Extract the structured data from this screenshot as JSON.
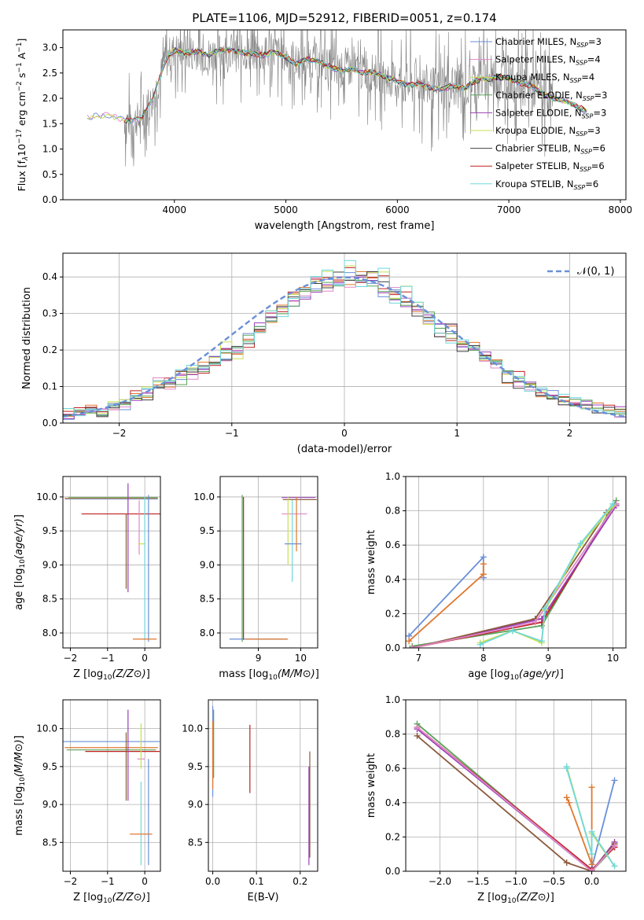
{
  "figure": {
    "title": "PLATE=1106, MJD=52912, FIBERID=0051, z=0.174"
  },
  "colors": {
    "data": "#808080",
    "series": [
      "#6a8fd8",
      "#e07830",
      "#5aa35a",
      "#c02020",
      "#9b3fb8",
      "#8b5a3c",
      "#e088c8",
      "#c8e050",
      "#70d8dc"
    ],
    "gaussian": "#6a8fd8"
  },
  "chart_data": [
    {
      "id": "spectrum",
      "type": "line",
      "xlabel": "wavelength [Angstrom, rest frame]",
      "ylabel": "Flux [f$_\\lambda$10$^{-17}$ erg cm$^{-2}$ s$^{-1}$ A$^{-1}$]",
      "ylabel_parts": [
        "Flux [f",
        "λ",
        "10",
        "−17",
        " erg cm",
        "−2",
        " s",
        "−1",
        " A",
        "−1",
        "]"
      ],
      "xlim": [
        3000,
        8050
      ],
      "ylim": [
        0,
        3.35
      ],
      "xticks": [
        4000,
        5000,
        6000,
        7000,
        8000
      ],
      "yticks": [
        0.0,
        0.5,
        1.0,
        1.5,
        2.0,
        2.5,
        3.0
      ],
      "grid": false,
      "legend_position": "upper-right",
      "legend": [
        {
          "label": "Chabrier MILES, N",
          "sub": "SSP",
          "suffix": "=3"
        },
        {
          "label": "Salpeter MILES, N",
          "sub": "SSP",
          "suffix": "=4"
        },
        {
          "label": "Kroupa MILES, N",
          "sub": "SSP",
          "suffix": "=4"
        },
        {
          "label": "Chabrier ELODIE, N",
          "sub": "SSP",
          "suffix": "=3"
        },
        {
          "label": "Salpeter ELODIE, N",
          "sub": "SSP",
          "suffix": "=3"
        },
        {
          "label": "Kroupa ELODIE, N",
          "sub": "SSP",
          "suffix": "=3"
        },
        {
          "label": "Chabrier STELIB, N",
          "sub": "SSP",
          "suffix": "=6"
        },
        {
          "label": "Salpeter STELIB, N",
          "sub": "SSP",
          "suffix": "=6"
        },
        {
          "label": "Kroupa STELIB, N",
          "sub": "SSP",
          "suffix": "=6"
        }
      ],
      "legend_colors": [
        "#6a8fd8",
        "#e088c8",
        "#c8e050",
        "#5aa35a",
        "#9b3fb8",
        "#c8e050",
        "#404040",
        "#c02020",
        "#70d8dc"
      ],
      "continuum": {
        "x": [
          3220,
          3300,
          3400,
          3500,
          3600,
          3700,
          3800,
          3900,
          3950,
          4000,
          4100,
          4200,
          4300,
          4400,
          4500,
          4600,
          4700,
          4800,
          4900,
          5000,
          5100,
          5200,
          5300,
          5400,
          5500,
          5600,
          5700,
          5800,
          5900,
          6000,
          6100,
          6200,
          6300,
          6400,
          6500,
          6600,
          6700,
          6800,
          6900,
          7000,
          7100,
          7200,
          7300,
          7400,
          7500,
          7600,
          7700
        ],
        "y": [
          1.62,
          1.66,
          1.67,
          1.6,
          1.55,
          1.6,
          1.95,
          2.6,
          2.85,
          2.95,
          2.9,
          2.92,
          2.85,
          2.95,
          2.95,
          2.9,
          2.88,
          2.85,
          2.92,
          2.82,
          2.68,
          2.78,
          2.72,
          2.62,
          2.55,
          2.58,
          2.5,
          2.52,
          2.4,
          2.35,
          2.25,
          2.3,
          2.2,
          2.18,
          2.25,
          2.2,
          2.35,
          2.38,
          2.42,
          2.4,
          2.3,
          2.25,
          2.1,
          2.0,
          1.95,
          1.85,
          1.75
        ]
      },
      "data_region_x": [
        3550,
        7400
      ]
    },
    {
      "id": "residuals",
      "type": "bar",
      "xlabel": "(data-model)/error",
      "ylabel": "Normed distribution",
      "xlim": [
        -2.5,
        2.5
      ],
      "ylim": [
        0,
        0.465
      ],
      "xticks": [
        -2,
        -1,
        0,
        1,
        2
      ],
      "yticks": [
        0.0,
        0.1,
        0.2,
        0.3,
        0.4
      ],
      "grid": true,
      "legend_position": "upper-right",
      "legend": [
        {
          "label": "𝒩(0, 1)"
        }
      ],
      "bin_width": 0.1,
      "bins_start": -2.5,
      "series_values": [
        [
          0.025,
          0.025,
          0.03,
          0.035,
          0.04,
          0.05,
          0.06,
          0.08,
          0.1,
          0.115,
          0.12,
          0.14,
          0.15,
          0.17,
          0.19,
          0.21,
          0.24,
          0.26,
          0.28,
          0.31,
          0.33,
          0.35,
          0.36,
          0.38,
          0.39,
          0.4,
          0.39,
          0.38,
          0.36,
          0.35,
          0.33,
          0.31,
          0.29,
          0.27,
          0.24,
          0.22,
          0.2,
          0.18,
          0.16,
          0.14,
          0.12,
          0.1,
          0.09,
          0.08,
          0.07,
          0.06,
          0.05,
          0.04,
          0.035,
          0.03
        ],
        [
          0.03,
          0.02,
          0.035,
          0.03,
          0.045,
          0.055,
          0.07,
          0.07,
          0.11,
          0.1,
          0.13,
          0.13,
          0.16,
          0.16,
          0.18,
          0.2,
          0.23,
          0.25,
          0.29,
          0.32,
          0.34,
          0.36,
          0.39,
          0.37,
          0.4,
          0.38,
          0.4,
          0.41,
          0.38,
          0.36,
          0.34,
          0.3,
          0.29,
          0.25,
          0.26,
          0.21,
          0.21,
          0.17,
          0.16,
          0.12,
          0.11,
          0.1,
          0.08,
          0.07,
          0.06,
          0.05,
          0.05,
          0.04,
          0.03,
          0.03
        ],
        [
          0.035,
          0.03,
          0.035,
          0.04,
          0.05,
          0.06,
          0.08,
          0.09,
          0.11,
          0.12,
          0.14,
          0.15,
          0.15,
          0.17,
          0.21,
          0.19,
          0.22,
          0.26,
          0.3,
          0.3,
          0.35,
          0.37,
          0.4,
          0.41,
          0.39,
          0.43,
          0.38,
          0.4,
          0.41,
          0.34,
          0.36,
          0.32,
          0.28,
          0.26,
          0.23,
          0.23,
          0.2,
          0.19,
          0.16,
          0.14,
          0.13,
          0.1,
          0.09,
          0.08,
          0.07,
          0.06,
          0.05,
          0.04,
          0.04,
          0.03
        ]
      ],
      "gaussian": {
        "mu": 0,
        "sigma": 1
      }
    },
    {
      "id": "age-vs-Z",
      "type": "scatter",
      "xlabel": "Z [log10(Z/Z⊙)]",
      "ylabel": "age  [log10(age/yr)]",
      "xlim": [
        -2.2,
        0.42
      ],
      "ylim": [
        7.78,
        10.3
      ],
      "xticks": [
        -2,
        -1,
        0
      ],
      "yticks": [
        8.0,
        8.5,
        9.0,
        9.5,
        10.0
      ],
      "grid": true,
      "points": [
        {
          "x": -0.9,
          "y": 9.97,
          "xerr": 1.25,
          "yerr": 0
        },
        {
          "x": -0.9,
          "y": 9.98,
          "xerr": 1.25,
          "yerr": 0
        },
        {
          "x": -0.85,
          "y": 9.99,
          "xerr": 1.2,
          "yerr": 0
        },
        {
          "x": -0.6,
          "y": 9.75,
          "xerr": 1.1,
          "yerr": 0
        },
        {
          "x": -0.45,
          "y": 9.4,
          "xerr": 0,
          "yerr": 0.8
        },
        {
          "x": -0.5,
          "y": 9.2,
          "xerr": 0,
          "yerr": 0.55
        },
        {
          "x": -0.15,
          "y": 9.55,
          "xerr": 0,
          "yerr": 0.4
        },
        {
          "x": -0.08,
          "y": 9.31,
          "xerr": 0.1,
          "yerr": 0
        },
        {
          "x": 0.0,
          "y": 8.95,
          "xerr": 0,
          "yerr": 1.05
        },
        {
          "x": 0.1,
          "y": 8.95,
          "xerr": 0,
          "yerr": 1.08
        },
        {
          "x": 0.0,
          "y": 7.91,
          "xerr": 0.32,
          "yerr": 0
        }
      ]
    },
    {
      "id": "age-vs-mass",
      "type": "scatter",
      "xlabel": "mass [log10(M/M⊙)]",
      "ylabel": "",
      "xlim": [
        8.1,
        10.4
      ],
      "ylim": [
        7.78,
        10.3
      ],
      "xticks": [
        9,
        10
      ],
      "yticks": [
        8.0,
        8.5,
        9.0,
        9.5,
        10.0
      ],
      "grid": true,
      "points": [
        {
          "x": 9.0,
          "y": 7.91,
          "xerr": 0.68,
          "yerr": 0
        },
        {
          "x": 9.2,
          "y": 7.91,
          "xerr": 0.5,
          "yerr": 0
        },
        {
          "x": 8.62,
          "y": 8.95,
          "xerr": 0,
          "yerr": 1.08
        },
        {
          "x": 8.65,
          "y": 8.95,
          "xerr": 0,
          "yerr": 1.05
        },
        {
          "x": 9.95,
          "y": 9.99,
          "xerr": 0.4,
          "yerr": 0
        },
        {
          "x": 9.98,
          "y": 9.96,
          "xerr": 0.4,
          "yerr": 0
        },
        {
          "x": 9.85,
          "y": 9.75,
          "xerr": 0.3,
          "yerr": 0
        },
        {
          "x": 9.7,
          "y": 9.5,
          "xerr": 0,
          "yerr": 0.5
        },
        {
          "x": 9.8,
          "y": 9.35,
          "xerr": 0,
          "yerr": 0.6
        },
        {
          "x": 9.82,
          "y": 9.31,
          "xerr": 0.2,
          "yerr": 0
        },
        {
          "x": 9.9,
          "y": 9.6,
          "xerr": 0,
          "yerr": 0.4
        }
      ]
    },
    {
      "id": "massweight-vs-age",
      "type": "line",
      "xlabel": "age  [log10(age/yr)]",
      "ylabel": "mass weight",
      "xlim": [
        6.8,
        10.2
      ],
      "ylim": [
        0,
        1.0
      ],
      "xticks": [
        7,
        8,
        9,
        10
      ],
      "yticks": [
        0.0,
        0.2,
        0.4,
        0.6,
        0.8,
        1.0
      ],
      "grid": true,
      "series": [
        {
          "x": [
            6.85,
            8.0,
            8.0
          ],
          "y": [
            0.07,
            0.53,
            0.41
          ]
        },
        {
          "x": [
            6.85,
            8.0,
            8.0
          ],
          "y": [
            0.04,
            0.43,
            0.49
          ]
        },
        {
          "x": [
            6.9,
            8.9,
            10.05
          ],
          "y": [
            0.01,
            0.13,
            0.86
          ]
        },
        {
          "x": [
            6.9,
            8.9,
            10.05
          ],
          "y": [
            0.0,
            0.15,
            0.84
          ]
        },
        {
          "x": [
            6.9,
            8.9,
            10.05
          ],
          "y": [
            0.0,
            0.17,
            0.83
          ]
        },
        {
          "x": [
            6.9,
            8.8,
            9.9
          ],
          "y": [
            0.0,
            0.17,
            0.79
          ]
        },
        {
          "x": [
            6.9,
            8.8,
            10.05
          ],
          "y": [
            0.0,
            0.15,
            0.84
          ]
        },
        {
          "x": [
            7.95,
            8.45,
            8.9,
            8.95,
            9.5,
            10.0
          ],
          "y": [
            0.03,
            0.1,
            0.03,
            0.22,
            0.6,
            0.83
          ]
        },
        {
          "x": [
            7.95,
            8.45,
            8.9,
            8.95,
            9.5,
            10.0
          ],
          "y": [
            0.02,
            0.1,
            0.04,
            0.23,
            0.61,
            0.84
          ]
        }
      ]
    },
    {
      "id": "mass-vs-Z",
      "type": "scatter",
      "xlabel": "Z [log10(Z/Z⊙)]",
      "ylabel": "mass [log10(M/M⊙)]",
      "xlim": [
        -2.2,
        0.42
      ],
      "ylim": [
        8.12,
        10.38
      ],
      "xticks": [
        -2,
        -1,
        0
      ],
      "yticks": [
        8.5,
        9.0,
        9.5,
        10.0
      ],
      "grid": true,
      "points": [
        {
          "x": -0.9,
          "y": 9.83,
          "xerr": 1.3,
          "yerr": 0
        },
        {
          "x": -0.9,
          "y": 9.75,
          "xerr": 1.25,
          "yerr": 0
        },
        {
          "x": -0.9,
          "y": 9.72,
          "xerr": 1.2,
          "yerr": 0
        },
        {
          "x": -0.6,
          "y": 9.7,
          "xerr": 1.0,
          "yerr": 0
        },
        {
          "x": -0.45,
          "y": 9.65,
          "xerr": 0,
          "yerr": 0.6
        },
        {
          "x": -0.5,
          "y": 9.5,
          "xerr": 0,
          "yerr": 0.45
        },
        {
          "x": -0.1,
          "y": 9.6,
          "xerr": 0.1,
          "yerr": 0
        },
        {
          "x": -0.1,
          "y": 9.77,
          "xerr": 0,
          "yerr": 0.3
        },
        {
          "x": -0.1,
          "y": 8.75,
          "xerr": 0,
          "yerr": 0.55
        },
        {
          "x": 0.1,
          "y": 8.9,
          "xerr": 0,
          "yerr": 0.7
        },
        {
          "x": -0.1,
          "y": 8.61,
          "xerr": 0.3,
          "yerr": 0
        }
      ]
    },
    {
      "id": "mass-vs-EBV",
      "type": "scatter",
      "xlabel": "E(B-V)",
      "ylabel": "",
      "xlim": [
        -0.01,
        0.24
      ],
      "ylim": [
        8.12,
        10.38
      ],
      "xticks": [
        0.0,
        0.1,
        0.2
      ],
      "yticks": [
        8.5,
        9.0,
        9.5,
        10.0
      ],
      "grid": true,
      "points": [
        {
          "x": 0.0,
          "y": 9.7,
          "xerr": 0,
          "yerr": 0.6
        },
        {
          "x": 0.0,
          "y": 9.65,
          "xerr": 0,
          "yerr": 0.45
        },
        {
          "x": 0.002,
          "y": 9.8,
          "xerr": 0,
          "yerr": 0.45
        },
        {
          "x": 0.085,
          "y": 9.6,
          "xerr": 0,
          "yerr": 0.45
        },
        {
          "x": 0.22,
          "y": 8.85,
          "xerr": 0,
          "yerr": 0.65
        },
        {
          "x": 0.222,
          "y": 9.0,
          "xerr": 0,
          "yerr": 0.7
        }
      ]
    },
    {
      "id": "massweight-vs-Z",
      "type": "line",
      "xlabel": "Z [log10(Z/Z⊙)]",
      "ylabel": "mass weight",
      "xlim": [
        -2.45,
        0.45
      ],
      "ylim": [
        0,
        1.0
      ],
      "xticks": [
        -2.0,
        -1.5,
        -1.0,
        -0.5,
        0.0
      ],
      "yticks": [
        0.0,
        0.2,
        0.4,
        0.6,
        0.8,
        1.0
      ],
      "grid": true,
      "series": [
        {
          "x": [
            0.0,
            0.3
          ],
          "y": [
            0.02,
            0.53
          ]
        },
        {
          "x": [
            -0.33,
            -0.3,
            0.0,
            0.0
          ],
          "y": [
            0.43,
            0.4,
            0.04,
            0.49
          ]
        },
        {
          "x": [
            -2.3,
            0.0,
            0.3
          ],
          "y": [
            0.86,
            0.0,
            0.14
          ]
        },
        {
          "x": [
            -2.3,
            0.0,
            0.3
          ],
          "y": [
            0.84,
            0.01,
            0.14
          ]
        },
        {
          "x": [
            -2.3,
            0.0,
            0.3
          ],
          "y": [
            0.83,
            0.0,
            0.17
          ]
        },
        {
          "x": [
            -2.3,
            -0.33,
            0.0,
            0.3
          ],
          "y": [
            0.79,
            0.05,
            0.0,
            0.16
          ]
        },
        {
          "x": [
            -2.3,
            0.0,
            0.3
          ],
          "y": [
            0.84,
            0.0,
            0.15
          ]
        },
        {
          "x": [
            -0.33,
            -0.33,
            0.0,
            0.0,
            0.3
          ],
          "y": [
            0.6,
            0.61,
            0.1,
            0.22,
            0.03
          ]
        },
        {
          "x": [
            -0.33,
            -0.33,
            0.0,
            0.0,
            0.3
          ],
          "y": [
            0.61,
            0.6,
            0.1,
            0.23,
            0.03
          ]
        }
      ]
    }
  ]
}
